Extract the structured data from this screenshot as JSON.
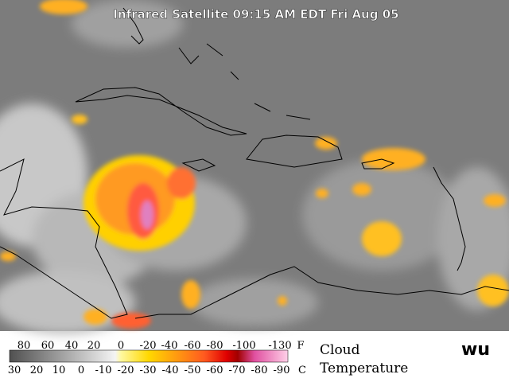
{
  "title": "Infrared Satellite 09:15 AM EDT Fri Aug 05",
  "legend": {
    "fahrenheit": {
      "labels": [
        "80",
        "60",
        "40",
        "20",
        "0",
        "-20",
        "-40",
        "-60",
        "-80",
        "-100",
        "-130"
      ],
      "unit": "F"
    },
    "celsius": {
      "labels": [
        "30",
        "20",
        "10",
        "0",
        "-10",
        "-20",
        "-30",
        "-40",
        "-50",
        "-60",
        "-70",
        "-80",
        "-90"
      ],
      "unit": "C"
    },
    "caption": [
      "Cloud",
      "Temperature"
    ]
  },
  "logo": "wu"
}
